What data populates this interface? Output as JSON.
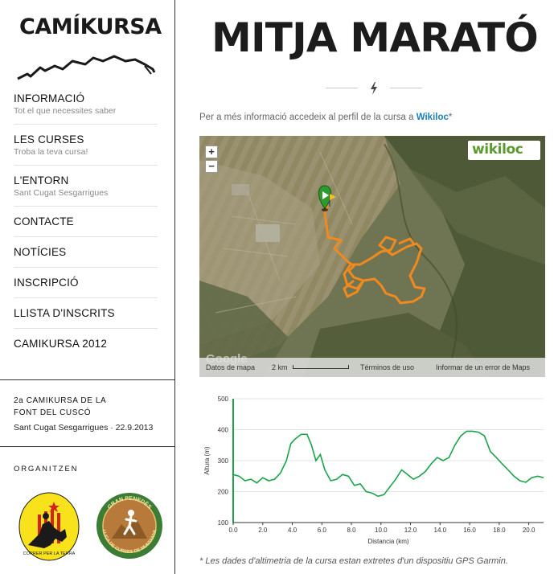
{
  "site": {
    "logo_text": "CAMÍKURSA"
  },
  "nav": [
    {
      "label": "INFORMACIÓ",
      "sub": "Tot el que necessites saber"
    },
    {
      "label": "LES CURSES",
      "sub": "Troba la teva cursa!"
    },
    {
      "label": "L'ENTORN",
      "sub": "Sant Cugat Sesgarrigues"
    },
    {
      "label": "CONTACTE"
    },
    {
      "label": "NOTÍCIES"
    },
    {
      "label": "INSCRIPCIÓ"
    },
    {
      "label": "LLISTA D'INSCRITS"
    },
    {
      "label": "CAMIKURSA 2012"
    }
  ],
  "event": {
    "title": "2a CAMIKURSA DE LA FONT DEL CUSCÓ",
    "place_date": "Sant Cugat Sesgarrigues · 22.9.2013"
  },
  "organizers": {
    "title": "ORGANITZEN",
    "logo1_text": "CORRER PER LA TERRA",
    "logo2_text": "GRAN PENEDÈS · LLIGA DE CURSES DE MUNTANYA"
  },
  "main": {
    "title": "MITJA MARATÓ",
    "intro_text": "Per a més informació accedeix al perfil de la cursa a ",
    "intro_link": "Wikiloc",
    "intro_suffix": "*"
  },
  "map": {
    "zoom_in": "+",
    "zoom_out": "−",
    "badge": "wikiloc",
    "watermark": "Google",
    "footer": {
      "data": "Datos de mapa",
      "scale": "2 km",
      "terms": "Términos de uso",
      "report": "Informar de un error de Maps"
    },
    "route_color": "#f08a1f"
  },
  "chart_data": {
    "type": "line",
    "xlabel": "Distancia (km)",
    "ylabel": "Altura (m)",
    "xlim": [
      0,
      21
    ],
    "ylim": [
      100,
      500
    ],
    "xticks": [
      0.0,
      2.0,
      4.0,
      6.0,
      8.0,
      10.0,
      12.0,
      14.0,
      16.0,
      18.0,
      20.0
    ],
    "yticks": [
      100,
      200,
      300,
      400,
      500
    ],
    "color": "#1aa44a",
    "x": [
      0.0,
      0.4,
      0.8,
      1.2,
      1.6,
      2.0,
      2.4,
      2.8,
      3.2,
      3.6,
      3.9,
      4.2,
      4.6,
      5.0,
      5.3,
      5.6,
      5.9,
      6.2,
      6.6,
      7.0,
      7.4,
      7.8,
      8.2,
      8.6,
      9.0,
      9.4,
      9.8,
      10.2,
      10.6,
      11.0,
      11.4,
      11.8,
      12.2,
      12.6,
      13.0,
      13.4,
      13.8,
      14.2,
      14.6,
      15.0,
      15.4,
      15.8,
      16.2,
      16.6,
      17.0,
      17.4,
      17.8,
      18.2,
      18.6,
      19.0,
      19.4,
      19.8,
      20.2,
      20.6,
      21.0
    ],
    "y": [
      255,
      250,
      235,
      240,
      228,
      245,
      235,
      240,
      260,
      300,
      355,
      370,
      385,
      385,
      350,
      300,
      320,
      270,
      235,
      240,
      255,
      250,
      220,
      225,
      200,
      195,
      185,
      190,
      215,
      240,
      270,
      255,
      240,
      250,
      265,
      290,
      310,
      300,
      310,
      350,
      380,
      395,
      395,
      392,
      380,
      330,
      310,
      290,
      270,
      250,
      235,
      230,
      245,
      250,
      245
    ]
  },
  "footnote": "* Les dades d'altimetria de la cursa estan extretes d'un dispositiu GPS Garmin."
}
